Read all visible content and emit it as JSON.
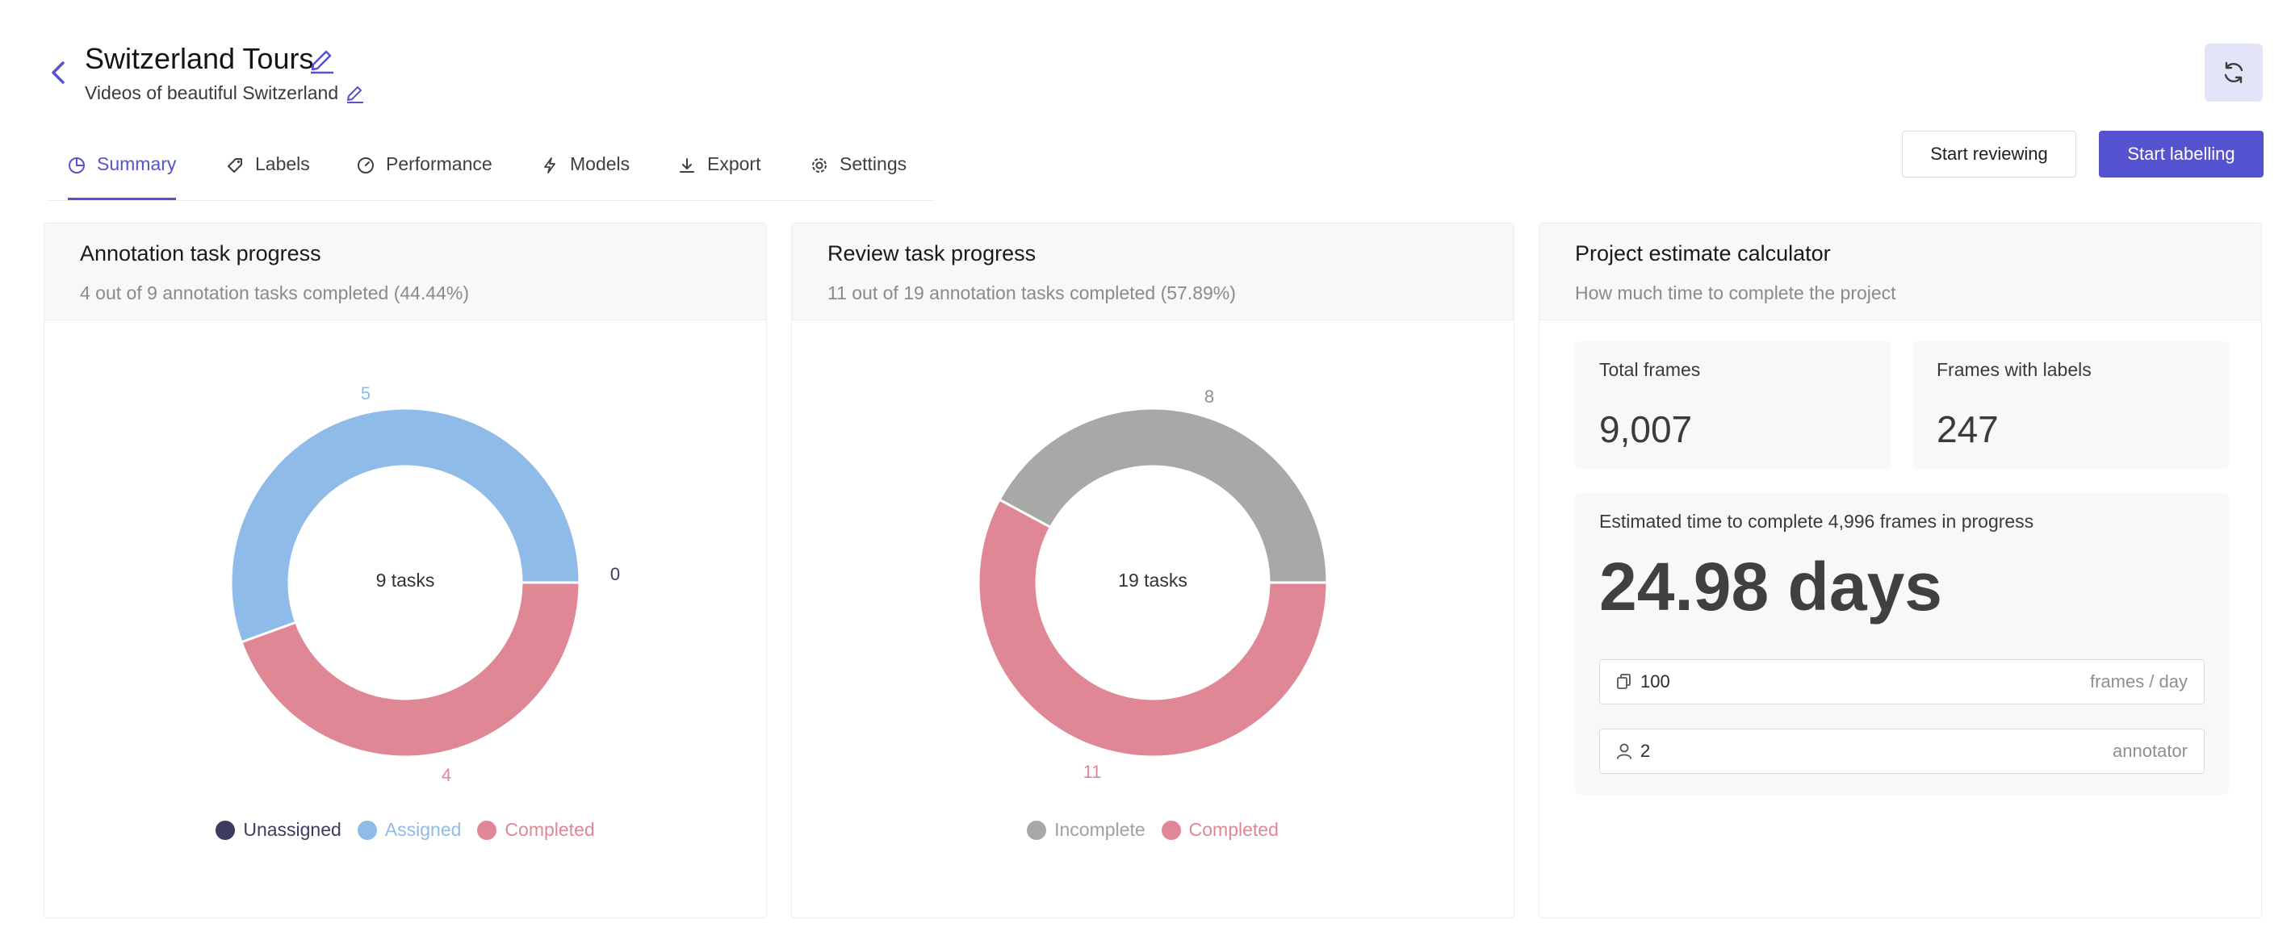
{
  "header": {
    "title": "Switzerland Tours",
    "subtitle": "Videos of beautiful Switzerland"
  },
  "tabs": [
    {
      "label": "Summary",
      "icon": "pie-chart-icon",
      "active": true
    },
    {
      "label": "Labels",
      "icon": "tag-icon",
      "active": false
    },
    {
      "label": "Performance",
      "icon": "dashboard-icon",
      "active": false
    },
    {
      "label": "Models",
      "icon": "lightning-icon",
      "active": false
    },
    {
      "label": "Export",
      "icon": "download-icon",
      "active": false
    },
    {
      "label": "Settings",
      "icon": "gear-icon",
      "active": false
    }
  ],
  "actions": {
    "start_reviewing": "Start reviewing",
    "start_labelling": "Start labelling"
  },
  "colors": {
    "accent": "#5553d0",
    "unassigned": "#3d3b5e",
    "assigned": "#8fbbe9",
    "completed": "#e08795",
    "incomplete": "#a8a9a7"
  },
  "annotation": {
    "title": "Annotation task progress",
    "subtitle": "4 out of 9 annotation tasks completed (44.44%)",
    "center_label": "9 tasks",
    "labels": {
      "assigned": "5",
      "unassigned": "0",
      "completed": "4"
    },
    "legend": {
      "unassigned": "Unassigned",
      "assigned": "Assigned",
      "completed": "Completed"
    }
  },
  "review": {
    "title": "Review task progress",
    "subtitle": "11 out of 19 annotation tasks completed (57.89%)",
    "center_label": "19 tasks",
    "labels": {
      "incomplete": "8",
      "completed": "11"
    },
    "legend": {
      "incomplete": "Incomplete",
      "completed": "Completed"
    }
  },
  "estimate": {
    "title": "Project estimate calculator",
    "subtitle": "How much time to complete the project",
    "total_frames_label": "Total frames",
    "total_frames_value": "9,007",
    "frames_with_labels_label": "Frames with labels",
    "frames_with_labels_value": "247",
    "estimated_label": "Estimated time to complete 4,996 frames in progress",
    "estimated_value": "24.98 days",
    "frames_per_day_value": "100",
    "frames_per_day_suffix": "frames / day",
    "annotator_value": "2",
    "annotator_suffix": "annotator"
  },
  "chart_data": [
    {
      "type": "pie",
      "title": "Annotation task progress",
      "center_label": "9 tasks",
      "categories": [
        "Unassigned",
        "Assigned",
        "Completed"
      ],
      "values": [
        0,
        5,
        4
      ]
    },
    {
      "type": "pie",
      "title": "Review task progress",
      "center_label": "19 tasks",
      "categories": [
        "Incomplete",
        "Completed"
      ],
      "values": [
        8,
        11
      ]
    }
  ]
}
